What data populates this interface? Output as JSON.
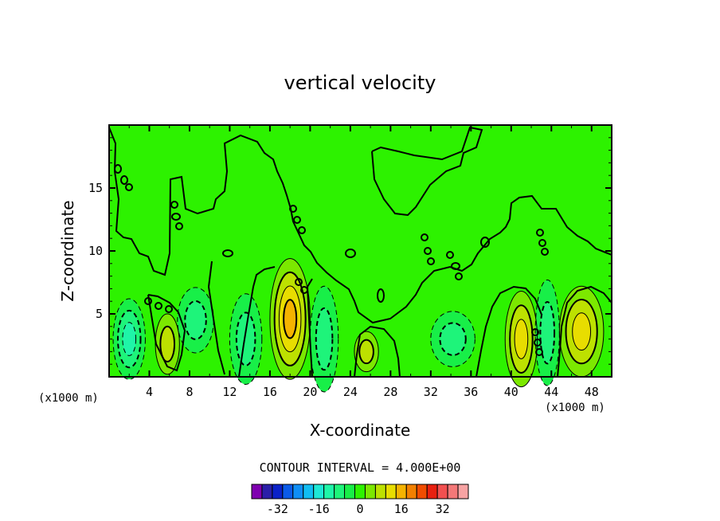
{
  "chart_data": {
    "type": "heatmap",
    "title": "vertical velocity",
    "xlabel": "X-coordinate",
    "ylabel": "Z-coordinate",
    "x_unit": "(x1000 m)",
    "xlim": [
      0,
      50
    ],
    "ylim": [
      0,
      20
    ],
    "x_ticks": [
      4,
      8,
      12,
      16,
      20,
      24,
      28,
      32,
      36,
      40,
      44,
      48
    ],
    "y_ticks": [
      5,
      10,
      15
    ],
    "contour_interval_label": "CONTOUR INTERVAL = 4.000E+00",
    "background_value": 0,
    "colorbar": {
      "ticks": [
        -32,
        -16,
        0,
        16,
        32
      ],
      "colors": [
        "#7f00b0",
        "#2a1fa8",
        "#0b22c8",
        "#0b5be8",
        "#0f8ef5",
        "#11bdf2",
        "#1ee8d6",
        "#1ff5a8",
        "#1ef47a",
        "#18ef48",
        "#2df200",
        "#7ce800",
        "#bde100",
        "#e8dd00",
        "#f5b300",
        "#f28000",
        "#f04c00",
        "#e82010",
        "#f25050",
        "#f47878",
        "#f7a3a3"
      ]
    },
    "features": [
      {
        "x": 2.0,
        "z": 3.0,
        "peak": -12,
        "rx": 1.6,
        "rz": 3.2
      },
      {
        "x": 5.8,
        "z": 2.6,
        "peak": 8,
        "rx": 1.2,
        "rz": 2.4
      },
      {
        "x": 8.6,
        "z": 4.5,
        "peak": -10,
        "rx": 1.8,
        "rz": 2.6
      },
      {
        "x": 13.6,
        "z": 3.0,
        "peak": -10,
        "rx": 1.6,
        "rz": 3.6
      },
      {
        "x": 18.0,
        "z": 4.6,
        "peak": 16,
        "rx": 2.0,
        "rz": 4.8
      },
      {
        "x": 21.4,
        "z": 3.0,
        "peak": -10,
        "rx": 1.4,
        "rz": 4.2
      },
      {
        "x": 25.6,
        "z": 2.0,
        "peak": 10,
        "rx": 1.2,
        "rz": 1.6
      },
      {
        "x": 34.2,
        "z": 3.0,
        "peak": -8,
        "rx": 2.2,
        "rz": 2.2
      },
      {
        "x": 41.0,
        "z": 3.0,
        "peak": 12,
        "rx": 1.6,
        "rz": 3.8
      },
      {
        "x": 43.6,
        "z": 3.5,
        "peak": -10,
        "rx": 1.2,
        "rz": 4.2
      },
      {
        "x": 47.0,
        "z": 3.6,
        "peak": 12,
        "rx": 2.2,
        "rz": 3.6
      }
    ]
  }
}
